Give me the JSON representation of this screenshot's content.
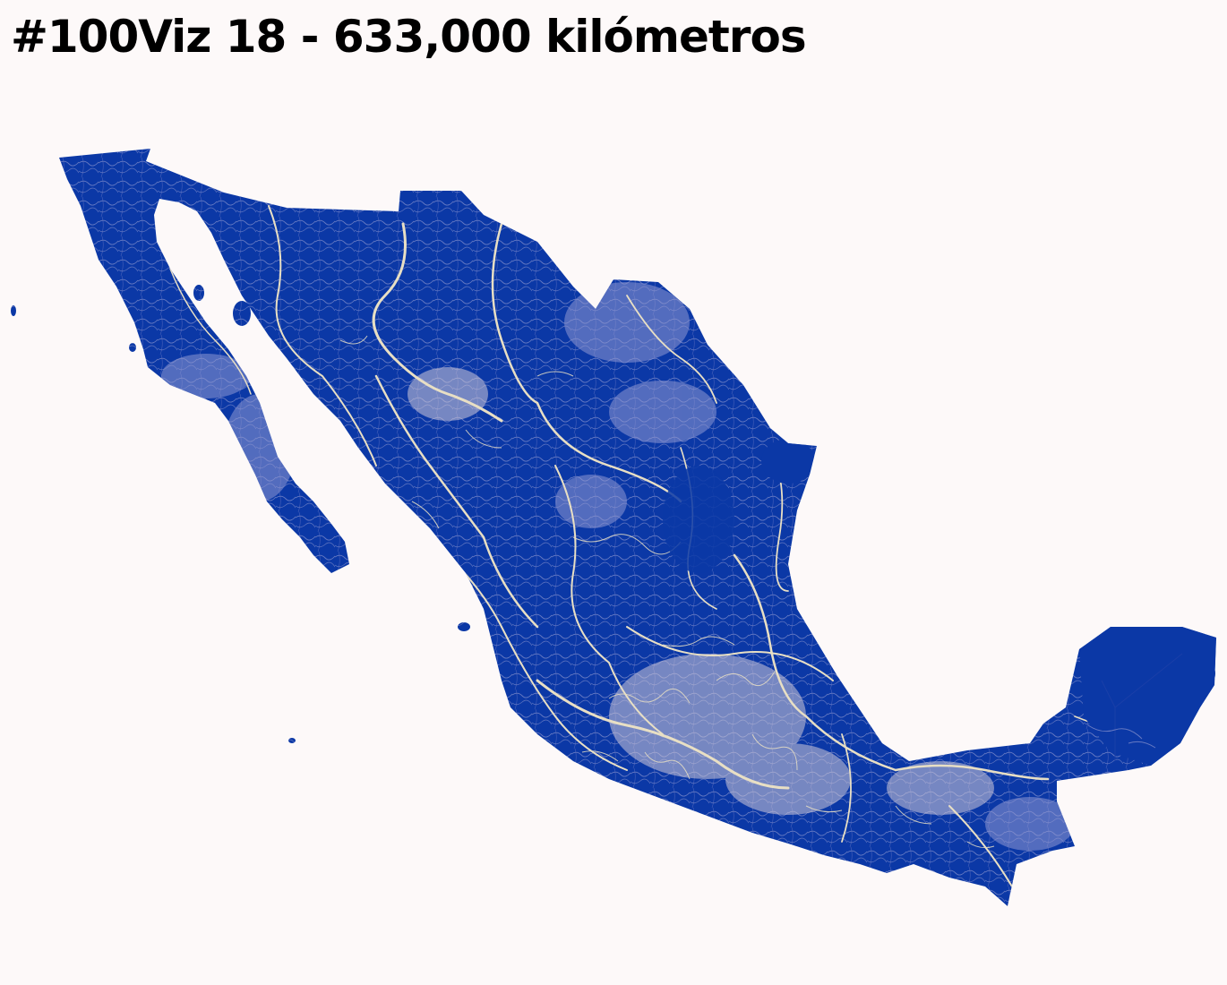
{
  "title": "#100Viz 18 - 633,000 kilómetros",
  "colors": {
    "background": "#fdf9f9",
    "land": "#0b38a6",
    "rivers": "#e8dfc4",
    "text": "#000000"
  },
  "icons": {
    "map": "mexico-river-map"
  }
}
